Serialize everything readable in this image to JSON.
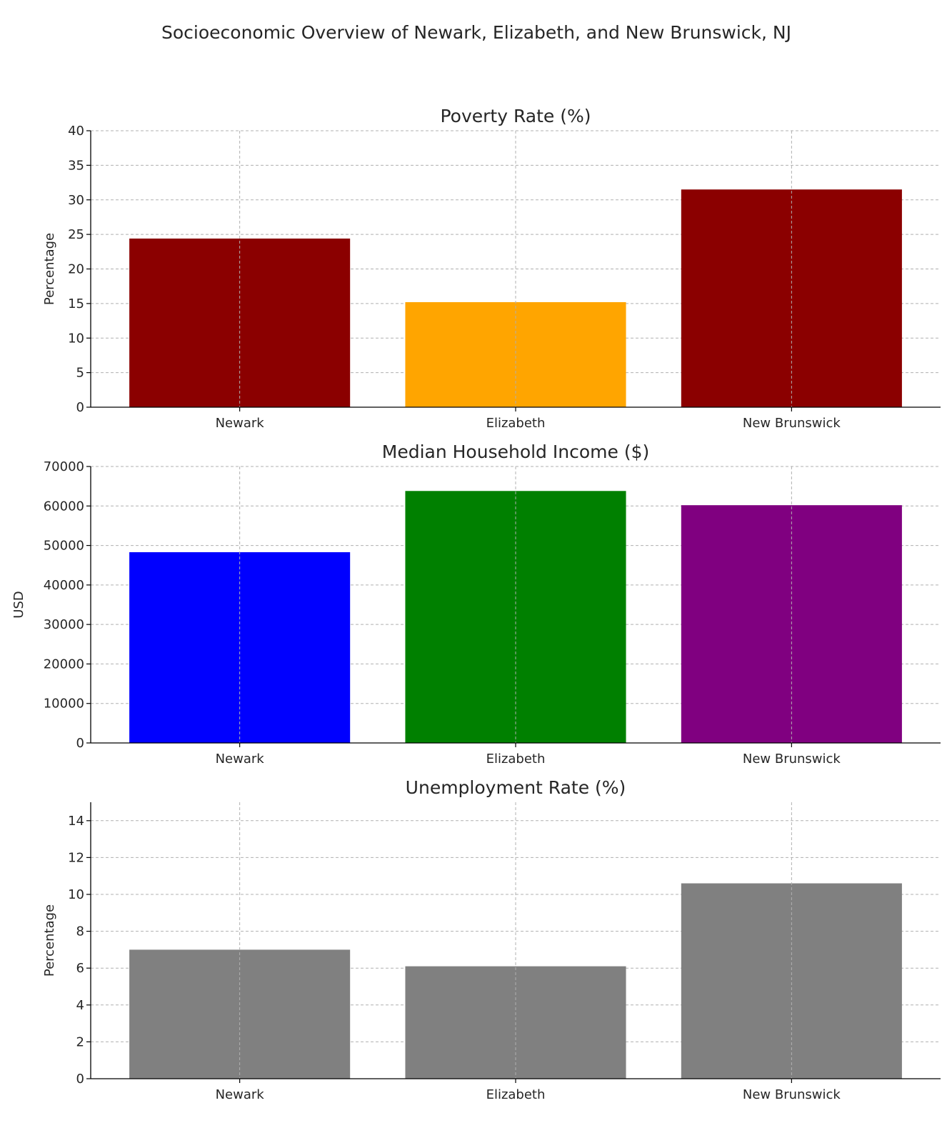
{
  "figure": {
    "title": "Socioeconomic Overview of Newark, Elizabeth, and New Brunswick, NJ"
  },
  "chart_data": [
    {
      "type": "bar",
      "title": "Poverty Rate (%)",
      "xlabel": "",
      "ylabel": "Percentage",
      "categories": [
        "Newark",
        "Elizabeth",
        "New Brunswick"
      ],
      "values": [
        24.4,
        15.2,
        31.5
      ],
      "colors": [
        "#8b0000",
        "#ffa500",
        "#8b0000"
      ],
      "ylim": [
        0,
        40
      ],
      "yticks": [
        0,
        5,
        10,
        15,
        20,
        25,
        30,
        35,
        40
      ],
      "grid": true
    },
    {
      "type": "bar",
      "title": "Median Household Income ($)",
      "xlabel": "",
      "ylabel": "USD",
      "categories": [
        "Newark",
        "Elizabeth",
        "New Brunswick"
      ],
      "values": [
        48300,
        63800,
        60200
      ],
      "colors": [
        "#0000ff",
        "#008000",
        "#800080"
      ],
      "ylim": [
        0,
        70000
      ],
      "yticks": [
        0,
        10000,
        20000,
        30000,
        40000,
        50000,
        60000,
        70000
      ],
      "grid": true
    },
    {
      "type": "bar",
      "title": "Unemployment Rate (%)",
      "xlabel": "",
      "ylabel": "Percentage",
      "categories": [
        "Newark",
        "Elizabeth",
        "New Brunswick"
      ],
      "values": [
        7.0,
        6.1,
        10.6
      ],
      "colors": [
        "#808080",
        "#808080",
        "#808080"
      ],
      "ylim": [
        0,
        15
      ],
      "yticks": [
        0,
        2,
        4,
        6,
        8,
        10,
        12,
        14
      ],
      "grid": true
    }
  ]
}
